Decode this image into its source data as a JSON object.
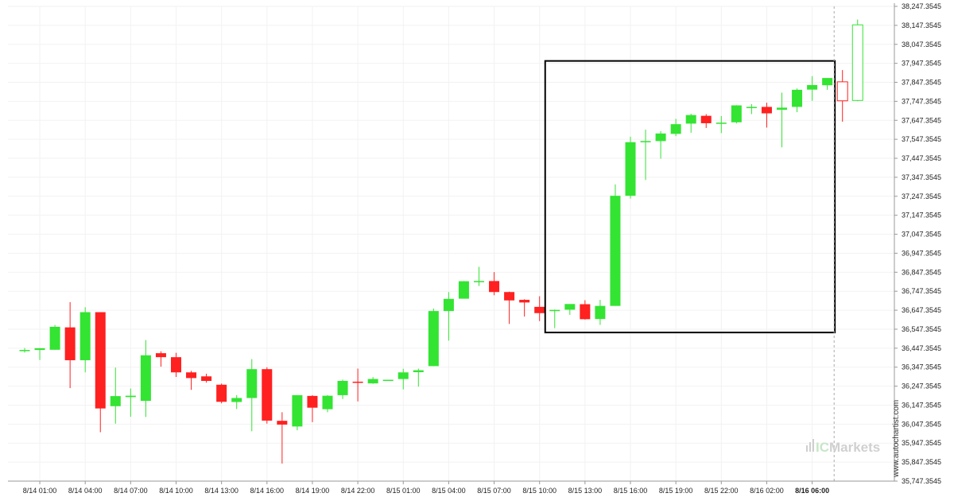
{
  "chart_data": {
    "type": "candlestick",
    "title": "",
    "xlabel": "",
    "ylabel": "",
    "ylim": [
      35747.3545,
      38247.3545
    ],
    "y_ticks": [
      "38,247.3545",
      "38,147.3545",
      "38,047.3545",
      "37,947.3545",
      "37,847.3545",
      "37,747.3545",
      "37,647.3545",
      "37,547.3545",
      "37,447.3545",
      "37,347.3545",
      "37,247.3545",
      "37,147.3545",
      "37,047.3545",
      "36,947.3545",
      "36,847.3545",
      "36,747.3545",
      "36,647.3545",
      "36,547.3545",
      "36,447.3545",
      "36,347.3545",
      "36,247.3545",
      "36,147.3545",
      "36,047.3545",
      "35,947.3545",
      "35,847.3545",
      "35,747.3545"
    ],
    "y_tick_values": [
      38247.3545,
      38147.3545,
      38047.3545,
      37947.3545,
      37847.3545,
      37747.3545,
      37647.3545,
      37547.3545,
      37447.3545,
      37347.3545,
      37247.3545,
      37147.3545,
      37047.3545,
      36947.3545,
      36847.3545,
      36747.3545,
      36647.3545,
      36547.3545,
      36447.3545,
      36347.3545,
      36247.3545,
      36147.3545,
      36047.3545,
      35947.3545,
      35847.3545,
      35747.3545
    ],
    "x_ticks": [
      {
        "label": "8/14 01:00",
        "index": 1
      },
      {
        "label": "8/14 04:00",
        "index": 4
      },
      {
        "label": "8/14 07:00",
        "index": 7
      },
      {
        "label": "8/14 10:00",
        "index": 10
      },
      {
        "label": "8/14 13:00",
        "index": 13
      },
      {
        "label": "8/14 16:00",
        "index": 16
      },
      {
        "label": "8/14 19:00",
        "index": 19
      },
      {
        "label": "8/14 22:00",
        "index": 22
      },
      {
        "label": "8/15 01:00",
        "index": 25
      },
      {
        "label": "8/15 04:00",
        "index": 28
      },
      {
        "label": "8/15 07:00",
        "index": 31
      },
      {
        "label": "8/15 10:00",
        "index": 34
      },
      {
        "label": "8/15 13:00",
        "index": 37
      },
      {
        "label": "8/15 16:00",
        "index": 40
      },
      {
        "label": "8/15 19:00",
        "index": 43
      },
      {
        "label": "8/15 22:00",
        "index": 46
      },
      {
        "label": "8/16 02:00",
        "index": 49
      },
      {
        "label": "8/16 06:00",
        "index": 52,
        "bold": true
      }
    ],
    "candles": [
      {
        "o": 36436,
        "h": 36448,
        "l": 36424,
        "c": 36438
      },
      {
        "o": 36438,
        "h": 36448,
        "l": 36385,
        "c": 36447
      },
      {
        "o": 36439,
        "h": 36570,
        "l": 36439,
        "c": 36560
      },
      {
        "o": 36557,
        "h": 36690,
        "l": 36237,
        "c": 36384
      },
      {
        "o": 36384,
        "h": 36663,
        "l": 36320,
        "c": 36637
      },
      {
        "o": 36637,
        "h": 36637,
        "l": 36005,
        "c": 36130
      },
      {
        "o": 36142,
        "h": 36345,
        "l": 36050,
        "c": 36195
      },
      {
        "o": 36190,
        "h": 36235,
        "l": 36086,
        "c": 36197
      },
      {
        "o": 36170,
        "h": 36490,
        "l": 36085,
        "c": 36410
      },
      {
        "o": 36421,
        "h": 36431,
        "l": 36350,
        "c": 36400
      },
      {
        "o": 36400,
        "h": 36423,
        "l": 36296,
        "c": 36320
      },
      {
        "o": 36320,
        "h": 36328,
        "l": 36228,
        "c": 36290
      },
      {
        "o": 36299,
        "h": 36313,
        "l": 36266,
        "c": 36275
      },
      {
        "o": 36255,
        "h": 36261,
        "l": 36157,
        "c": 36165
      },
      {
        "o": 36164,
        "h": 36200,
        "l": 36127,
        "c": 36185
      },
      {
        "o": 36185,
        "h": 36390,
        "l": 36010,
        "c": 36337
      },
      {
        "o": 36337,
        "h": 36347,
        "l": 36050,
        "c": 36066
      },
      {
        "o": 36065,
        "h": 36110,
        "l": 35840,
        "c": 36045
      },
      {
        "o": 36035,
        "h": 36200,
        "l": 36015,
        "c": 36200
      },
      {
        "o": 36196,
        "h": 36200,
        "l": 36058,
        "c": 36134
      },
      {
        "o": 36126,
        "h": 36200,
        "l": 36110,
        "c": 36197
      },
      {
        "o": 36200,
        "h": 36282,
        "l": 36180,
        "c": 36275
      },
      {
        "o": 36271,
        "h": 36340,
        "l": 36167,
        "c": 36270
      },
      {
        "o": 36262,
        "h": 36295,
        "l": 36260,
        "c": 36285
      },
      {
        "o": 36280,
        "h": 36281,
        "l": 36280,
        "c": 36281
      },
      {
        "o": 36285,
        "h": 36339,
        "l": 36230,
        "c": 36320
      },
      {
        "o": 36321,
        "h": 36340,
        "l": 36245,
        "c": 36331
      },
      {
        "o": 36353,
        "h": 36656,
        "l": 36353,
        "c": 36643
      },
      {
        "o": 36643,
        "h": 36743,
        "l": 36487,
        "c": 36707
      },
      {
        "o": 36708,
        "h": 36801,
        "l": 36708,
        "c": 36800
      },
      {
        "o": 36797,
        "h": 36876,
        "l": 36775,
        "c": 36801
      },
      {
        "o": 36801,
        "h": 36848,
        "l": 36726,
        "c": 36743
      },
      {
        "o": 36743,
        "h": 36745,
        "l": 36575,
        "c": 36699
      },
      {
        "o": 36702,
        "h": 36705,
        "l": 36614,
        "c": 36688
      },
      {
        "o": 36665,
        "h": 36721,
        "l": 36590,
        "c": 36632
      },
      {
        "o": 36643,
        "h": 36651,
        "l": 36553,
        "c": 36649
      },
      {
        "o": 36650,
        "h": 36678,
        "l": 36623,
        "c": 36680
      },
      {
        "o": 36679,
        "h": 36700,
        "l": 36598,
        "c": 36600
      },
      {
        "o": 36601,
        "h": 36702,
        "l": 36570,
        "c": 36670
      },
      {
        "o": 36670,
        "h": 37310,
        "l": 36670,
        "c": 37250
      },
      {
        "o": 37250,
        "h": 37561,
        "l": 37235,
        "c": 37532
      },
      {
        "o": 37535,
        "h": 37598,
        "l": 37333,
        "c": 37538
      },
      {
        "o": 37538,
        "h": 37590,
        "l": 37445,
        "c": 37578
      },
      {
        "o": 37576,
        "h": 37655,
        "l": 37564,
        "c": 37627
      },
      {
        "o": 37630,
        "h": 37682,
        "l": 37582,
        "c": 37675
      },
      {
        "o": 37671,
        "h": 37680,
        "l": 37607,
        "c": 37632
      },
      {
        "o": 37635,
        "h": 37670,
        "l": 37580,
        "c": 37635
      },
      {
        "o": 37637,
        "h": 37727,
        "l": 37631,
        "c": 37726
      },
      {
        "o": 37712,
        "h": 37733,
        "l": 37680,
        "c": 37718
      },
      {
        "o": 37718,
        "h": 37740,
        "l": 37609,
        "c": 37684
      },
      {
        "o": 37703,
        "h": 37793,
        "l": 37505,
        "c": 37714
      },
      {
        "o": 37718,
        "h": 37815,
        "l": 37690,
        "c": 37808
      },
      {
        "o": 37809,
        "h": 37880,
        "l": 37750,
        "c": 37833
      },
      {
        "o": 37832,
        "h": 37870,
        "l": 37808,
        "c": 37870
      },
      {
        "o": 37850,
        "h": 37912,
        "l": 37640,
        "c": 37750,
        "hollow": true
      },
      {
        "o": 37752,
        "h": 38178,
        "l": 37748,
        "c": 38150,
        "hollow": true
      }
    ],
    "highlight_box": {
      "from_index": 35,
      "to_index": 53,
      "high": 37960,
      "low": 36530
    },
    "current_marker_index": 53,
    "colors": {
      "up": "#33e433",
      "down": "#ff2020",
      "axis": "#999999",
      "grid": "#f2f2f2",
      "box": "#000000",
      "marker": "#aaaaaa"
    }
  },
  "watermark": {
    "site": "www.autochartist.com",
    "brand_prefix": "IC",
    "brand_suffix": "Markets"
  }
}
